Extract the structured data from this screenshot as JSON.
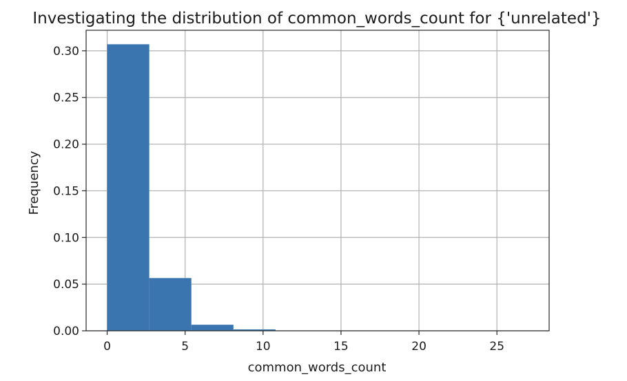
{
  "chart_data": {
    "type": "bar",
    "title": "Investigating the distribution of common_words_count for {'unrelated'}",
    "xlabel": "common_words_count",
    "ylabel": "Frequency",
    "xlim": [
      -1.35,
      28.35
    ],
    "ylim": [
      0,
      0.322
    ],
    "xticks": [
      0,
      5,
      10,
      15,
      20,
      25
    ],
    "yticks": [
      0.0,
      0.05,
      0.1,
      0.15,
      0.2,
      0.25,
      0.3
    ],
    "ytick_labels": [
      "0.00",
      "0.05",
      "0.10",
      "0.15",
      "0.20",
      "0.25",
      "0.30"
    ],
    "grid": true,
    "bar_color": "#3a75b0",
    "bins": [
      {
        "start": 0.0,
        "end": 2.7,
        "value": 0.307
      },
      {
        "start": 2.7,
        "end": 5.4,
        "value": 0.0565
      },
      {
        "start": 5.4,
        "end": 8.1,
        "value": 0.0065
      },
      {
        "start": 8.1,
        "end": 10.8,
        "value": 0.0015
      },
      {
        "start": 10.8,
        "end": 13.5,
        "value": 0.0002
      },
      {
        "start": 13.5,
        "end": 16.2,
        "value": 0.0001
      },
      {
        "start": 16.2,
        "end": 18.9,
        "value": 0.0
      },
      {
        "start": 18.9,
        "end": 21.6,
        "value": 0.0
      },
      {
        "start": 21.6,
        "end": 24.3,
        "value": 0.0
      },
      {
        "start": 24.3,
        "end": 27.0,
        "value": 0.0
      }
    ]
  }
}
